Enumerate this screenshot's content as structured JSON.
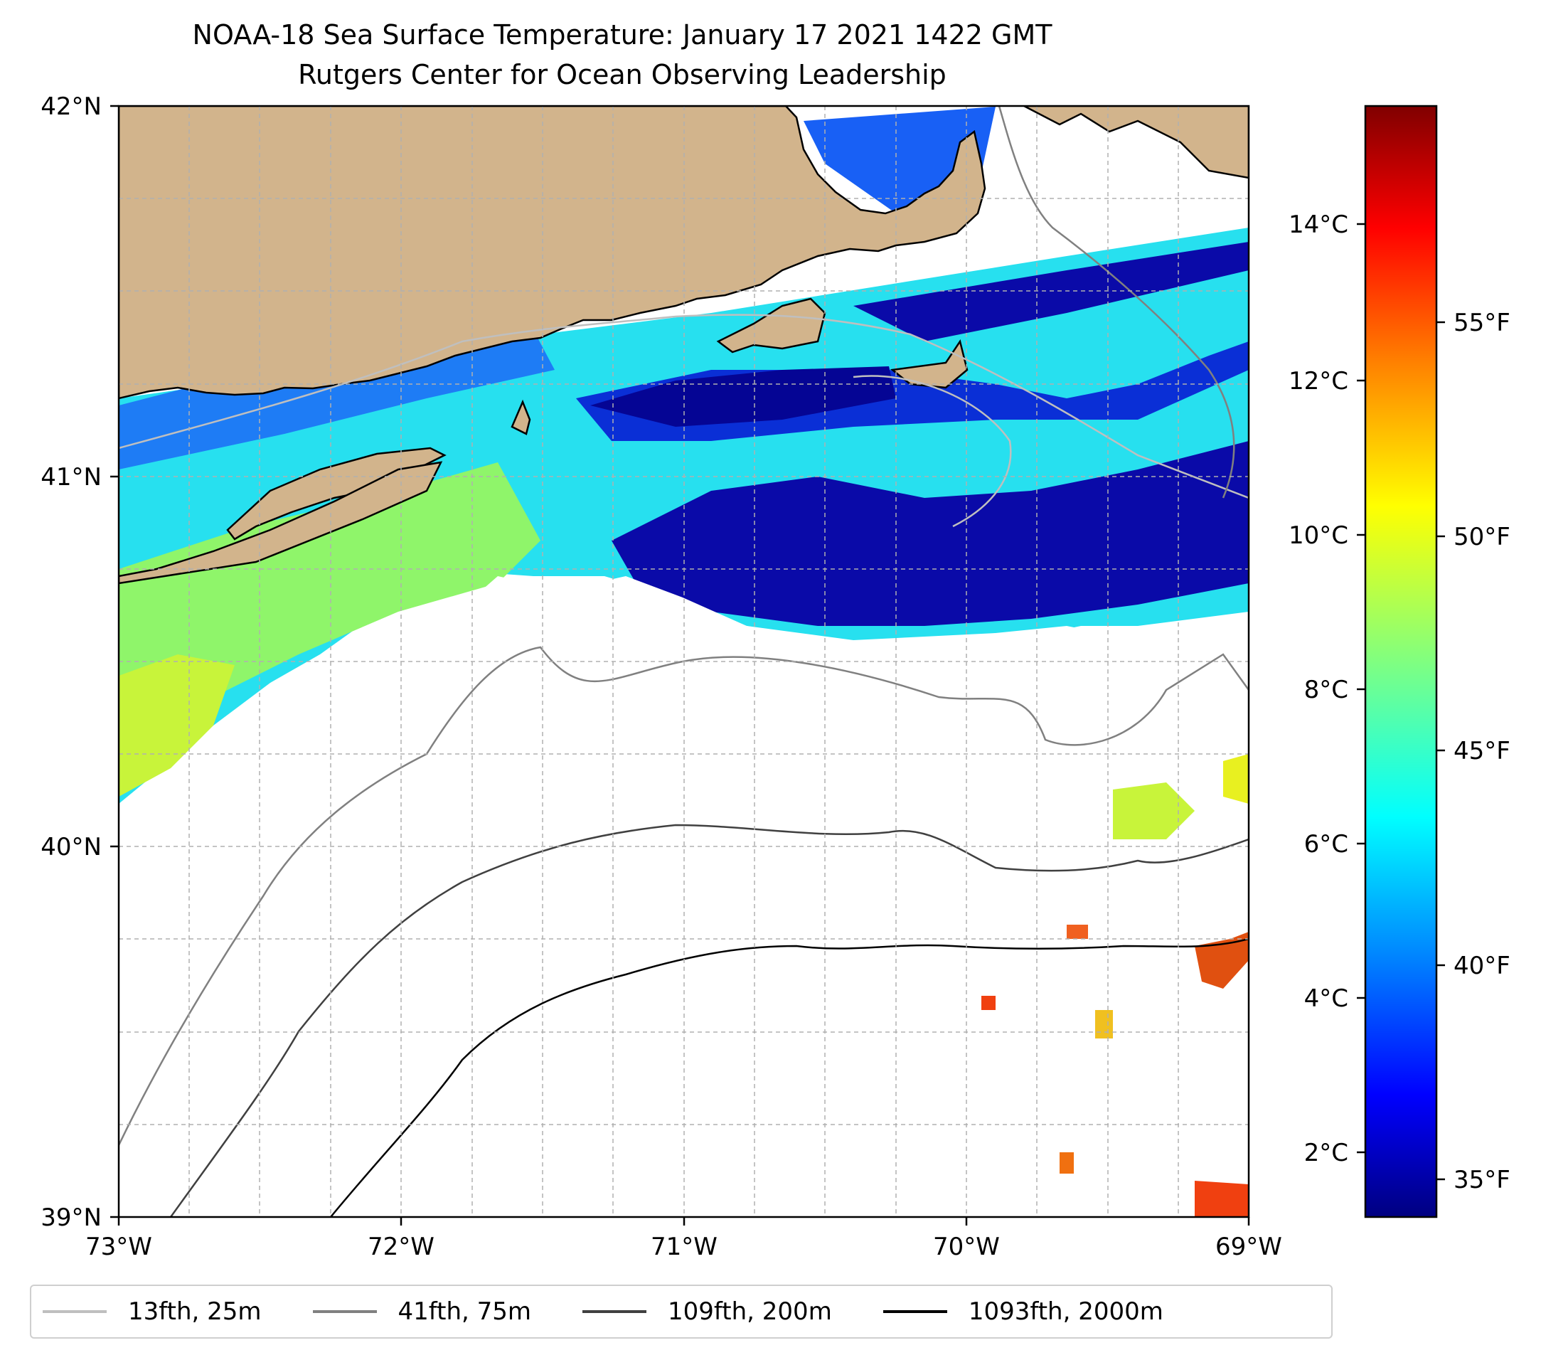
{
  "title": {
    "line1": "NOAA-18 Sea Surface Temperature: January 17 2021 1422 GMT",
    "line2": "Rutgers Center for Ocean Observing Leadership"
  },
  "axes": {
    "lat_labels": [
      "42°N",
      "41°N",
      "40°N",
      "39°N"
    ],
    "lon_labels": [
      "73°W",
      "72°W",
      "71°W",
      "70°W",
      "69°W"
    ],
    "lat_range": [
      39,
      42
    ],
    "lon_range": [
      -73,
      -69
    ]
  },
  "colorbar": {
    "celsius_labels": [
      "14°C",
      "12°C",
      "10°C",
      "8°C",
      "6°C",
      "4°C",
      "2°C"
    ],
    "fahrenheit_labels": [
      "55°F",
      "50°F",
      "45°F",
      "40°F",
      "35°F"
    ],
    "colormap": "jet",
    "colors": [
      "#000080",
      "#0000ff",
      "#0080ff",
      "#00ffff",
      "#80ff80",
      "#ffff00",
      "#ff8000",
      "#ff0000",
      "#800000"
    ]
  },
  "legend": {
    "items": [
      {
        "label": "13fth, 25m",
        "color": "#bfbfbf"
      },
      {
        "label": "41fth, 75m",
        "color": "#808080"
      },
      {
        "label": "109fth, 200m",
        "color": "#404040"
      },
      {
        "label": "1093fth, 2000m",
        "color": "#000000"
      }
    ]
  },
  "colors": {
    "land": "#d2b48c",
    "grid": "#b0b0b0"
  }
}
